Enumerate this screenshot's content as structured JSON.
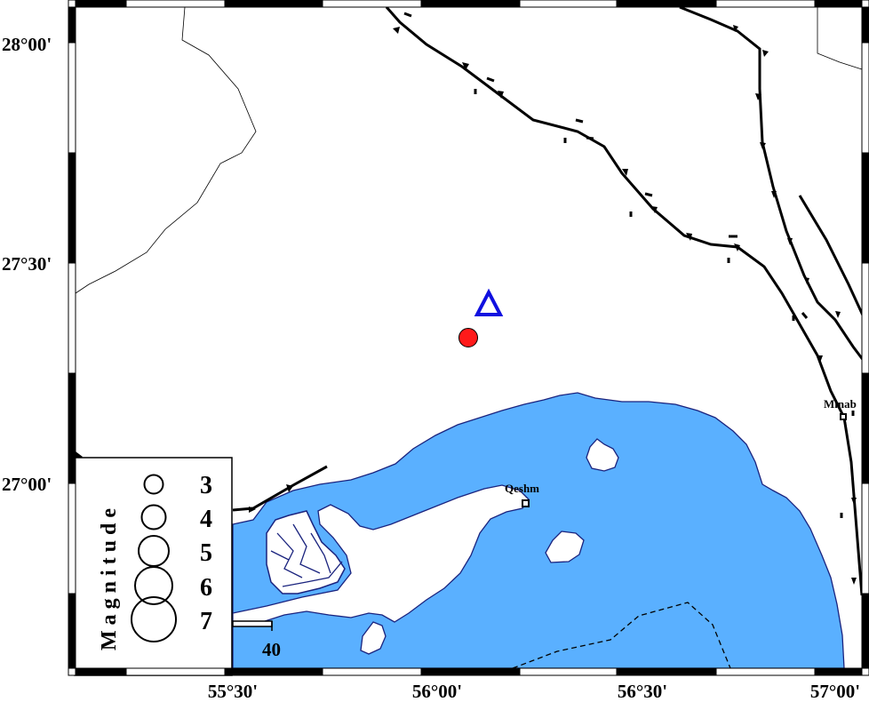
{
  "map": {
    "colors": {
      "sea": "#5ab0ff",
      "coast": "#1a237e",
      "land": "#ffffff",
      "fault": "#000000",
      "epicenter": "#ff1a1a",
      "station": "#1010e0"
    },
    "lat_labels": [
      "28°00'",
      "27°30'",
      "27°00'"
    ],
    "lon_labels": [
      "55°30'",
      "56°00'",
      "56°30'",
      "57°00'"
    ],
    "cities": [
      {
        "name": "Qeshm"
      },
      {
        "name": "Minab"
      }
    ],
    "scale_bar": {
      "label": "40"
    },
    "markers": {
      "epicenter": "red-circle",
      "station": "blue-triangle"
    }
  },
  "legend": {
    "title": "Magnitude",
    "items": [
      {
        "label": "3"
      },
      {
        "label": "4"
      },
      {
        "label": "5"
      },
      {
        "label": "6"
      },
      {
        "label": "7"
      }
    ]
  }
}
